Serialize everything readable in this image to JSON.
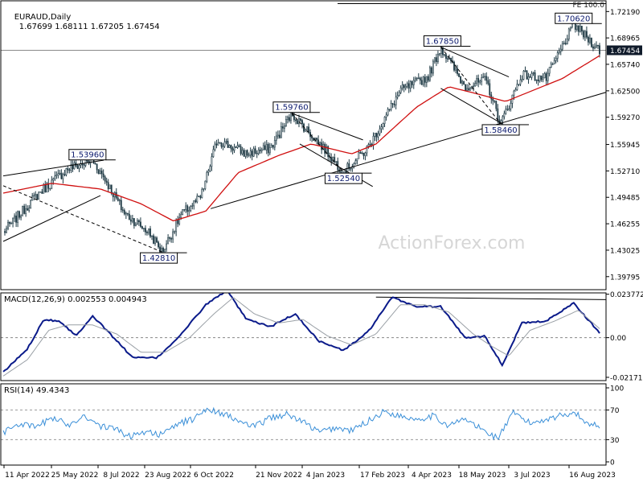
{
  "header": {
    "symbol": "EURAUD,Daily",
    "ohlc": "1.67699 1.68111 1.67205 1.67454",
    "fe_label": "FE 100.0",
    "watermark": "ActionForex.com"
  },
  "colors": {
    "candle": "#1f3a45",
    "ma": "#d01010",
    "macd": "#0a1a8a",
    "signal": "#9aa0a6",
    "rsi": "#3a8fd8",
    "trend": "#000000",
    "grid": "#bfbfbf",
    "price_tag_bg": "#0f1a2a"
  },
  "chart_data": [
    {
      "type": "candlestick",
      "title": "EURAUD,Daily",
      "ylim": [
        1.382,
        1.735
      ],
      "y_ticks": [
        "1.72190",
        "1.68965",
        "1.65740",
        "1.62500",
        "1.59270",
        "1.55945",
        "1.52710",
        "1.49485",
        "1.46255",
        "1.43025",
        "1.39795"
      ],
      "x_ticks": [
        "11 Apr 2022",
        "25 May 2022",
        "8 Jul 2022",
        "23 Aug 2022",
        "6 Oct 2022",
        "21 Nov 2022",
        "4 Jan 2023",
        "17 Feb 2023",
        "4 Apr 2023",
        "18 May 2023",
        "3 Jul 2023",
        "16 Aug 2023"
      ],
      "last_price": "1.67454",
      "fe_level": 1.7315,
      "key_points": [
        {
          "x": 0,
          "y": 1.452
        },
        {
          "x": 22,
          "y": 1.5
        },
        {
          "x": 40,
          "y": 1.53
        },
        {
          "x": 55,
          "y": 1.5396
        },
        {
          "x": 62,
          "y": 1.52
        },
        {
          "x": 75,
          "y": 1.475
        },
        {
          "x": 90,
          "y": 1.452
        },
        {
          "x": 98,
          "y": 1.4281
        },
        {
          "x": 110,
          "y": 1.474
        },
        {
          "x": 122,
          "y": 1.495
        },
        {
          "x": 132,
          "y": 1.565
        },
        {
          "x": 150,
          "y": 1.548
        },
        {
          "x": 165,
          "y": 1.555
        },
        {
          "x": 178,
          "y": 1.5976
        },
        {
          "x": 200,
          "y": 1.55
        },
        {
          "x": 210,
          "y": 1.5254
        },
        {
          "x": 225,
          "y": 1.555
        },
        {
          "x": 245,
          "y": 1.625
        },
        {
          "x": 262,
          "y": 1.642
        },
        {
          "x": 270,
          "y": 1.6785
        },
        {
          "x": 285,
          "y": 1.63
        },
        {
          "x": 298,
          "y": 1.638
        },
        {
          "x": 307,
          "y": 1.5846
        },
        {
          "x": 320,
          "y": 1.645
        },
        {
          "x": 335,
          "y": 1.64
        },
        {
          "x": 352,
          "y": 1.7062
        },
        {
          "x": 368,
          "y": 1.67454
        }
      ],
      "ma_points": [
        {
          "x": 0,
          "y": 1.5
        },
        {
          "x": 30,
          "y": 1.512
        },
        {
          "x": 60,
          "y": 1.505
        },
        {
          "x": 85,
          "y": 1.487
        },
        {
          "x": 105,
          "y": 1.466
        },
        {
          "x": 125,
          "y": 1.478
        },
        {
          "x": 145,
          "y": 1.525
        },
        {
          "x": 170,
          "y": 1.546
        },
        {
          "x": 190,
          "y": 1.56
        },
        {
          "x": 215,
          "y": 1.548
        },
        {
          "x": 230,
          "y": 1.56
        },
        {
          "x": 255,
          "y": 1.605
        },
        {
          "x": 275,
          "y": 1.63
        },
        {
          "x": 295,
          "y": 1.62
        },
        {
          "x": 310,
          "y": 1.612
        },
        {
          "x": 330,
          "y": 1.628
        },
        {
          "x": 345,
          "y": 1.64
        },
        {
          "x": 368,
          "y": 1.668
        }
      ],
      "annotations": [
        {
          "label": "1.53960",
          "x": 52,
          "y": 1.5396,
          "anchor": "top"
        },
        {
          "label": "1.42810",
          "x": 96,
          "y": 1.4281,
          "anchor": "bottom"
        },
        {
          "label": "1.59760",
          "x": 178,
          "y": 1.5976,
          "anchor": "top"
        },
        {
          "label": "1.52540",
          "x": 210,
          "y": 1.5254,
          "anchor": "bottom"
        },
        {
          "label": "1.67850",
          "x": 271,
          "y": 1.6785,
          "anchor": "top"
        },
        {
          "label": "1.58460",
          "x": 307,
          "y": 1.5846,
          "anchor": "bottom"
        },
        {
          "label": "1.70620",
          "x": 352,
          "y": 1.7062,
          "anchor": "top"
        }
      ],
      "trendlines": [
        {
          "x1": 0,
          "y1": 1.441,
          "x2": 60,
          "y2": 1.497,
          "style": "solid"
        },
        {
          "x1": 0,
          "y1": 1.521,
          "x2": 62,
          "y2": 1.5402,
          "style": "solid"
        },
        {
          "x1": 0,
          "y1": 1.509,
          "x2": 98,
          "y2": 1.4281,
          "style": "dashed"
        },
        {
          "x1": 128,
          "y1": 1.481,
          "x2": 375,
          "y2": 1.625,
          "style": "solid"
        },
        {
          "x1": 178,
          "y1": 1.5976,
          "x2": 222,
          "y2": 1.565,
          "style": "solid"
        },
        {
          "x1": 183,
          "y1": 1.56,
          "x2": 228,
          "y2": 1.508,
          "style": "solid"
        },
        {
          "x1": 178,
          "y1": 1.5976,
          "x2": 210,
          "y2": 1.5254,
          "style": "dashed"
        },
        {
          "x1": 270,
          "y1": 1.6785,
          "x2": 312,
          "y2": 1.642,
          "style": "solid"
        },
        {
          "x1": 270,
          "y1": 1.628,
          "x2": 308,
          "y2": 1.5846,
          "style": "solid"
        },
        {
          "x1": 270,
          "y1": 1.6785,
          "x2": 307,
          "y2": 1.5846,
          "style": "dashed"
        }
      ]
    },
    {
      "type": "line",
      "title": "MACD(12,26,9) 0.002553 0.004943",
      "ylim": [
        -0.0235,
        0.0245
      ],
      "y_ticks": [
        "0.023772",
        "0.00",
        "-0.021716"
      ],
      "zero_line": 0.0,
      "resistance": {
        "x1": 230,
        "y1": 0.0222,
        "x2": 372,
        "y2": 0.0208
      },
      "series": [
        {
          "role": "macd",
          "points": [
            {
              "x": 0,
              "y": -0.019
            },
            {
              "x": 15,
              "y": -0.006
            },
            {
              "x": 25,
              "y": 0.01
            },
            {
              "x": 35,
              "y": 0.009
            },
            {
              "x": 45,
              "y": 0.001
            },
            {
              "x": 55,
              "y": 0.012
            },
            {
              "x": 65,
              "y": 0.003
            },
            {
              "x": 80,
              "y": -0.011
            },
            {
              "x": 95,
              "y": -0.011
            },
            {
              "x": 110,
              "y": 0.002
            },
            {
              "x": 125,
              "y": 0.018
            },
            {
              "x": 138,
              "y": 0.026
            },
            {
              "x": 150,
              "y": 0.01
            },
            {
              "x": 165,
              "y": 0.006
            },
            {
              "x": 180,
              "y": 0.013
            },
            {
              "x": 195,
              "y": -0.002
            },
            {
              "x": 210,
              "y": -0.007
            },
            {
              "x": 225,
              "y": 0.003
            },
            {
              "x": 240,
              "y": 0.022
            },
            {
              "x": 255,
              "y": 0.017
            },
            {
              "x": 270,
              "y": 0.017
            },
            {
              "x": 285,
              "y": 0.0
            },
            {
              "x": 297,
              "y": 0.001
            },
            {
              "x": 308,
              "y": -0.015
            },
            {
              "x": 320,
              "y": 0.008
            },
            {
              "x": 335,
              "y": 0.009
            },
            {
              "x": 352,
              "y": 0.019
            },
            {
              "x": 368,
              "y": 0.0026
            }
          ]
        },
        {
          "role": "signal",
          "points": [
            {
              "x": 0,
              "y": -0.021
            },
            {
              "x": 15,
              "y": -0.012
            },
            {
              "x": 28,
              "y": 0.004
            },
            {
              "x": 40,
              "y": 0.007
            },
            {
              "x": 55,
              "y": 0.007
            },
            {
              "x": 70,
              "y": 0.002
            },
            {
              "x": 85,
              "y": -0.008
            },
            {
              "x": 100,
              "y": -0.008
            },
            {
              "x": 115,
              "y": 0.0
            },
            {
              "x": 130,
              "y": 0.013
            },
            {
              "x": 142,
              "y": 0.022
            },
            {
              "x": 155,
              "y": 0.013
            },
            {
              "x": 170,
              "y": 0.008
            },
            {
              "x": 185,
              "y": 0.01
            },
            {
              "x": 200,
              "y": 0.001
            },
            {
              "x": 215,
              "y": -0.004
            },
            {
              "x": 230,
              "y": 0.002
            },
            {
              "x": 245,
              "y": 0.018
            },
            {
              "x": 260,
              "y": 0.018
            },
            {
              "x": 275,
              "y": 0.014
            },
            {
              "x": 290,
              "y": 0.002
            },
            {
              "x": 302,
              "y": -0.005
            },
            {
              "x": 312,
              "y": -0.01
            },
            {
              "x": 325,
              "y": 0.004
            },
            {
              "x": 340,
              "y": 0.009
            },
            {
              "x": 355,
              "y": 0.015
            },
            {
              "x": 368,
              "y": 0.0049
            }
          ]
        }
      ]
    },
    {
      "type": "line",
      "title": "RSI(14) 49.4343",
      "ylim": [
        0,
        100
      ],
      "y_ticks": [
        "100",
        "70",
        "30",
        "0"
      ],
      "guide_levels": [
        70,
        30
      ],
      "series": [
        {
          "role": "rsi",
          "points": [
            {
              "x": 0,
              "y": 40
            },
            {
              "x": 10,
              "y": 52
            },
            {
              "x": 20,
              "y": 46
            },
            {
              "x": 30,
              "y": 60
            },
            {
              "x": 40,
              "y": 50
            },
            {
              "x": 50,
              "y": 63
            },
            {
              "x": 60,
              "y": 48
            },
            {
              "x": 70,
              "y": 44
            },
            {
              "x": 78,
              "y": 34
            },
            {
              "x": 88,
              "y": 42
            },
            {
              "x": 98,
              "y": 36
            },
            {
              "x": 108,
              "y": 52
            },
            {
              "x": 118,
              "y": 58
            },
            {
              "x": 125,
              "y": 72
            },
            {
              "x": 135,
              "y": 66
            },
            {
              "x": 145,
              "y": 55
            },
            {
              "x": 155,
              "y": 47
            },
            {
              "x": 165,
              "y": 60
            },
            {
              "x": 175,
              "y": 64
            },
            {
              "x": 185,
              "y": 54
            },
            {
              "x": 195,
              "y": 40
            },
            {
              "x": 205,
              "y": 46
            },
            {
              "x": 215,
              "y": 42
            },
            {
              "x": 225,
              "y": 55
            },
            {
              "x": 235,
              "y": 68
            },
            {
              "x": 245,
              "y": 62
            },
            {
              "x": 255,
              "y": 58
            },
            {
              "x": 265,
              "y": 62
            },
            {
              "x": 275,
              "y": 49
            },
            {
              "x": 285,
              "y": 58
            },
            {
              "x": 295,
              "y": 44
            },
            {
              "x": 305,
              "y": 32
            },
            {
              "x": 315,
              "y": 66
            },
            {
              "x": 325,
              "y": 52
            },
            {
              "x": 335,
              "y": 58
            },
            {
              "x": 345,
              "y": 63
            },
            {
              "x": 352,
              "y": 68
            },
            {
              "x": 360,
              "y": 52
            },
            {
              "x": 368,
              "y": 49.4
            }
          ]
        }
      ]
    }
  ]
}
